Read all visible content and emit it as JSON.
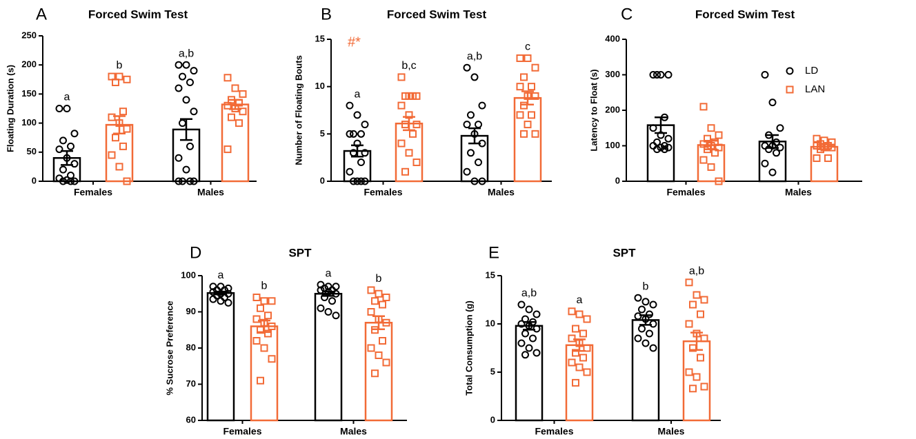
{
  "chart_data": [
    {
      "type": "bar",
      "panel": "A",
      "title": "Forced Swim Test",
      "y_label": "Floating Duration (s)",
      "categories": [
        "Females",
        "Males"
      ],
      "ylim": [
        0,
        250
      ],
      "yticks": [
        0,
        50,
        100,
        150,
        200,
        250
      ],
      "series": [
        {
          "color": "#000000",
          "marker": "circle",
          "values": [
            40,
            89
          ],
          "errors": [
            12,
            18
          ],
          "letters": [
            "a",
            "a,b"
          ],
          "points": [
            [
              125,
              125,
              82,
              70,
              60,
              55,
              40,
              30,
              20,
              10,
              5,
              2,
              0,
              0,
              0
            ],
            [
              200,
              200,
              190,
              180,
              170,
              160,
              140,
              120,
              100,
              60,
              40,
              20,
              0,
              0,
              0,
              0
            ]
          ]
        },
        {
          "color": "#f26a36",
          "marker": "square",
          "values": [
            97,
            132
          ],
          "errors": [
            15,
            8
          ],
          "letters": [
            "b",
            null
          ],
          "points": [
            [
              180,
              180,
              175,
              170,
              120,
              110,
              100,
              90,
              75,
              60,
              45,
              25,
              0
            ],
            [
              178,
              160,
              150,
              140,
              135,
              130,
              125,
              120,
              110,
              100,
              55
            ]
          ]
        }
      ]
    },
    {
      "type": "bar",
      "panel": "B",
      "title": "Forced Swim Test",
      "y_label": "Number of Floating Bouts",
      "categories": [
        "Females",
        "Males"
      ],
      "ylim": [
        0,
        15
      ],
      "yticks": [
        0,
        5,
        10,
        15
      ],
      "annotation": "#*",
      "series": [
        {
          "color": "#000000",
          "marker": "circle",
          "values": [
            3.2,
            4.8
          ],
          "errors": [
            0.6,
            0.8
          ],
          "letters": [
            "a",
            "a,b"
          ],
          "points": [
            [
              8,
              7,
              6,
              5,
              5,
              5,
              4,
              3,
              3,
              2,
              1,
              0,
              0,
              0,
              0
            ],
            [
              12,
              11,
              8,
              7,
              6,
              6,
              5,
              4,
              3,
              2,
              1,
              0,
              0
            ]
          ]
        },
        {
          "color": "#f26a36",
          "marker": "square",
          "values": [
            6.1,
            8.8
          ],
          "errors": [
            0.7,
            0.7
          ],
          "letters": [
            "b,c",
            "c"
          ],
          "points": [
            [
              11,
              9,
              9,
              9,
              9,
              8,
              7,
              6,
              6,
              5,
              4,
              3,
              2,
              1
            ],
            [
              13,
              13,
              12,
              11,
              10,
              10,
              9,
              9,
              8,
              7,
              7,
              6,
              5,
              5
            ]
          ]
        }
      ]
    },
    {
      "type": "bar",
      "panel": "C",
      "title": "Forced Swim Test",
      "y_label": "Latency to Float (s)",
      "categories": [
        "Females",
        "Males"
      ],
      "ylim": [
        0,
        400
      ],
      "yticks": [
        0,
        100,
        200,
        300,
        400
      ],
      "legend": "upper right",
      "series": [
        {
          "name": "LD",
          "color": "#000000",
          "marker": "circle",
          "values": [
            158,
            112
          ],
          "errors": [
            22,
            18
          ],
          "points": [
            [
              300,
              300,
              300,
              300,
              180,
              150,
              130,
              120,
              110,
              100,
              100,
              95,
              95,
              90,
              90
            ],
            [
              300,
              222,
              150,
              130,
              110,
              100,
              100,
              95,
              90,
              80,
              50,
              25
            ]
          ]
        },
        {
          "name": "LAN",
          "color": "#f26a36",
          "marker": "square",
          "values": [
            102,
            97
          ],
          "errors": [
            12,
            7
          ],
          "points": [
            [
              210,
              150,
              130,
              120,
              110,
              105,
              100,
              95,
              90,
              80,
              60,
              40,
              0
            ],
            [
              120,
              115,
              110,
              105,
              100,
              100,
              95,
              95,
              90,
              65,
              65
            ]
          ]
        }
      ]
    },
    {
      "type": "bar",
      "panel": "D",
      "title": "SPT",
      "y_label": "% Sucrose Preference",
      "categories": [
        "Females",
        "Males"
      ],
      "ylim": [
        60,
        100
      ],
      "yticks": [
        60,
        70,
        80,
        90,
        100
      ],
      "series": [
        {
          "color": "#000000",
          "marker": "circle",
          "values": [
            95.2,
            95
          ],
          "errors": [
            0.4,
            0.6
          ],
          "letters": [
            "a",
            "a"
          ],
          "points": [
            [
              97,
              97,
              96.5,
              96,
              96,
              95.5,
              95,
              95,
              94.5,
              94,
              93.5,
              93,
              92.5
            ],
            [
              97.5,
              97,
              97,
              96.5,
              96,
              96,
              95.5,
              95,
              94,
              93,
              91,
              90,
              89
            ]
          ]
        },
        {
          "color": "#f26a36",
          "marker": "square",
          "values": [
            86,
            87
          ],
          "errors": [
            1.6,
            1.8
          ],
          "letters": [
            "b",
            "b"
          ],
          "points": [
            [
              94,
              93,
              93,
              91,
              89,
              88,
              87,
              86,
              85,
              84,
              82,
              80,
              77,
              71
            ],
            [
              96,
              95,
              94,
              93,
              92,
              90,
              88,
              87,
              85,
              82,
              80,
              78,
              76,
              73
            ]
          ]
        }
      ]
    },
    {
      "type": "bar",
      "panel": "E",
      "title": "SPT",
      "y_label": "Total Consumption (g)",
      "categories": [
        "Females",
        "Males"
      ],
      "ylim": [
        0,
        15
      ],
      "yticks": [
        0,
        5,
        10,
        15
      ],
      "series": [
        {
          "color": "#000000",
          "marker": "circle",
          "values": [
            9.8,
            10.4
          ],
          "errors": [
            0.4,
            0.5
          ],
          "letters": [
            "a,b",
            "b"
          ],
          "points": [
            [
              12,
              11.5,
              11,
              10.5,
              10.2,
              10,
              9.8,
              9.5,
              9,
              8.5,
              8,
              7.5,
              7,
              6.8
            ],
            [
              12.7,
              12.3,
              12,
              11.5,
              11,
              10.8,
              10.5,
              10,
              9.5,
              9,
              8.5,
              8,
              7.5
            ]
          ]
        },
        {
          "color": "#f26a36",
          "marker": "square",
          "values": [
            7.8,
            8.2
          ],
          "errors": [
            0.6,
            0.9
          ],
          "letters": [
            "a",
            "a,b"
          ],
          "points": [
            [
              11.3,
              11,
              10.5,
              9.5,
              9,
              8.5,
              8,
              7.5,
              7,
              6.5,
              6,
              5.5,
              5,
              3.9
            ],
            [
              14.3,
              13,
              12.5,
              12,
              11,
              10,
              9,
              8.5,
              7.5,
              6.5,
              5,
              4.5,
              3.5,
              3.3
            ]
          ]
        }
      ]
    }
  ]
}
